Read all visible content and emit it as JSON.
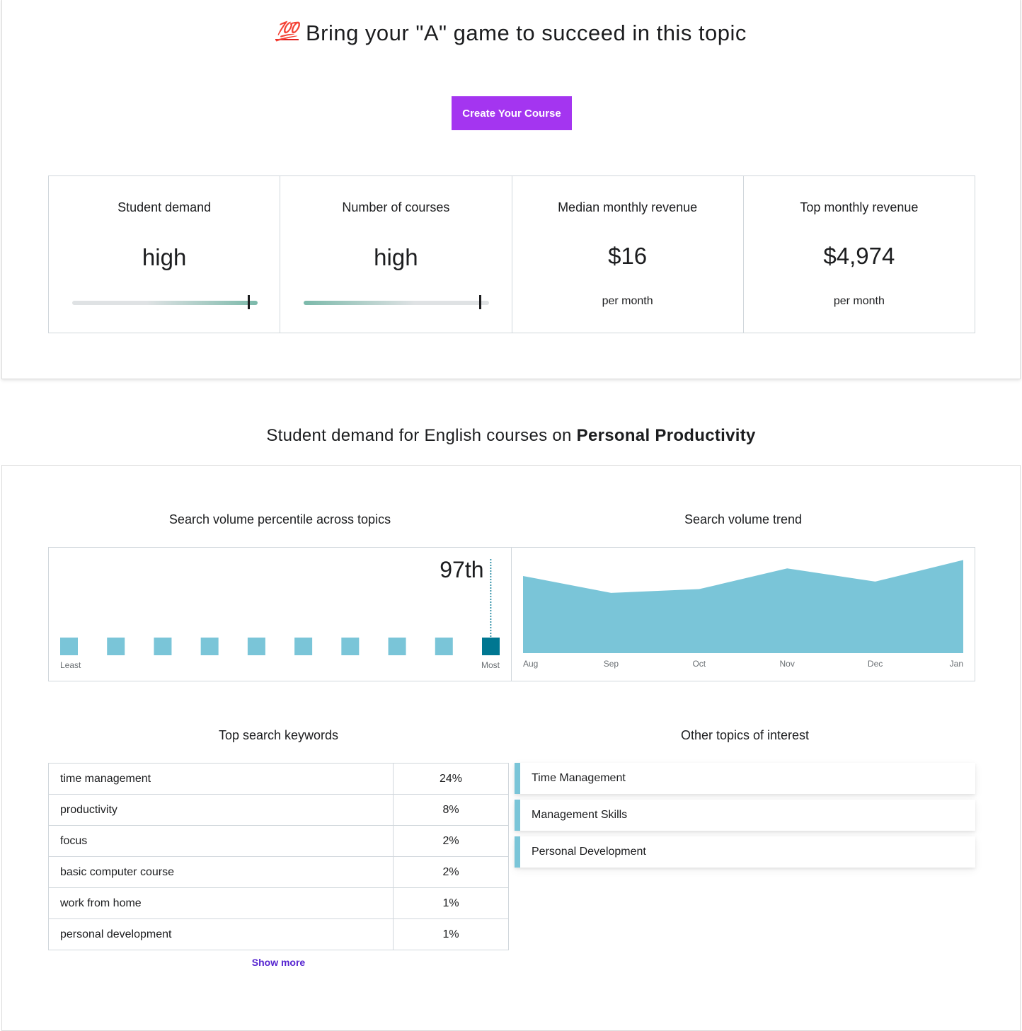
{
  "hero": {
    "emoji": "💯",
    "headline": "Bring your \"A\" game to succeed in this topic",
    "cta_label": "Create Your Course",
    "accent": "#a435f0"
  },
  "stats": [
    {
      "label": "Student demand",
      "value": "high",
      "level": 0.95
    },
    {
      "label": "Number of courses",
      "value": "high",
      "level": 0.95
    },
    {
      "label": "Median monthly revenue",
      "value": "$16",
      "sub": "per month"
    },
    {
      "label": "Top monthly revenue",
      "value": "$4,974",
      "sub": "per month"
    }
  ],
  "section": {
    "prefix": "Student demand for English courses on ",
    "topic": "Personal Productivity"
  },
  "percentile": {
    "title": "Search volume percentile across topics",
    "value_label": "97th",
    "bucket_count": 10,
    "active_bucket": 10,
    "least_label": "Least",
    "most_label": "Most",
    "color": "#7ac5d8",
    "active_color": "#007791"
  },
  "chart_data": {
    "type": "area",
    "title": "Search volume trend",
    "categories": [
      "Aug",
      "Sep",
      "Oct",
      "Nov",
      "Dec",
      "Jan"
    ],
    "values": [
      82,
      64,
      68,
      90,
      76,
      99
    ],
    "ylim": [
      0,
      100
    ],
    "color": "#7ac5d8"
  },
  "keywords": {
    "title": "Top search keywords",
    "rows": [
      {
        "keyword": "time management",
        "pct": "24%"
      },
      {
        "keyword": "productivity",
        "pct": "8%"
      },
      {
        "keyword": "focus",
        "pct": "2%"
      },
      {
        "keyword": "basic computer course",
        "pct": "2%"
      },
      {
        "keyword": "work from home",
        "pct": "1%"
      },
      {
        "keyword": "personal development",
        "pct": "1%"
      }
    ],
    "show_more": "Show more"
  },
  "topics": {
    "title": "Other topics of interest",
    "items": [
      "Time Management",
      "Management Skills",
      "Personal Development"
    ]
  }
}
